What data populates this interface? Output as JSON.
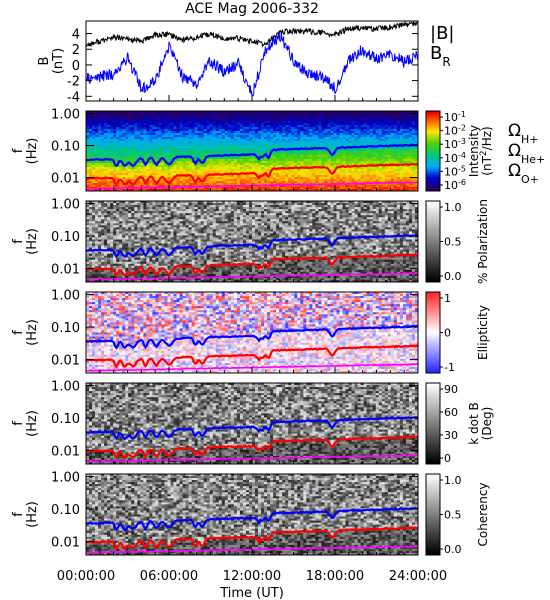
{
  "title": "ACE Mag 2006-332",
  "x_axis": {
    "label": "Time (UT)",
    "ticks": [
      "00:00:00",
      "06:00:00",
      "12:00:00",
      "18:00:00",
      "24:00:00"
    ]
  },
  "colors": {
    "h_plus": "#0000ff",
    "he_plus": "#ff0000",
    "o_plus": "#ff00ff",
    "b_total": "#000000",
    "b_r": "#0000ff"
  },
  "chart_data": [
    {
      "type": "line",
      "ylabel": "B\n(nT)",
      "yticks": [
        "4",
        "2",
        "0",
        "-2",
        "-4"
      ],
      "ylim": [
        -4.6,
        5.6
      ],
      "x_range_hours": [
        0,
        24
      ],
      "legend": [
        "|B|",
        "B_R"
      ],
      "series": [
        {
          "name": "|B|",
          "color": "#000000",
          "x": [
            0,
            1,
            2,
            3,
            4,
            5,
            6,
            7,
            8,
            9,
            10,
            11,
            12,
            13,
            14,
            15,
            16,
            17,
            18,
            19,
            20,
            21,
            22,
            23,
            24
          ],
          "values": [
            2.5,
            3.0,
            3.5,
            3.3,
            3.0,
            3.8,
            3.9,
            3.2,
            3.5,
            3.9,
            3.3,
            3.4,
            3.0,
            2.6,
            4.2,
            4.3,
            4.3,
            4.1,
            3.8,
            4.6,
            4.7,
            4.6,
            4.8,
            5.1,
            5.3
          ]
        },
        {
          "name": "B_R",
          "color": "#0000ff",
          "x": [
            0,
            1,
            2,
            3,
            4,
            5,
            6,
            7,
            8,
            9,
            10,
            11,
            12,
            13,
            14,
            15,
            16,
            17,
            18,
            19,
            20,
            21,
            22,
            23,
            24
          ],
          "values": [
            -1.8,
            -1.5,
            -1.2,
            1.0,
            -3.0,
            -2.0,
            2.5,
            -1.5,
            -2.3,
            0.5,
            -1.0,
            0.2,
            -3.8,
            1.8,
            3.8,
            0.5,
            -1.2,
            -1.5,
            -3.0,
            0.5,
            2.0,
            0.8,
            1.5,
            0.3,
            1.2
          ]
        }
      ]
    },
    {
      "type": "heatmap",
      "ylabel": "f\n(Hz)",
      "yticks": [
        "1.00",
        "0.10",
        "0.01"
      ],
      "colorbar_label": "Intensity\n(nT^2/Hz)",
      "colorbar_ticks": [
        "10^-1",
        "10^-2",
        "10^-3",
        "10^-4",
        "10^-5",
        "10^-6"
      ],
      "colorbar": "rainbow",
      "legend": [
        "Ω_H+",
        "Ω_He+",
        "Ω_O+"
      ]
    },
    {
      "type": "heatmap",
      "ylabel": "f\n(Hz)",
      "yticks": [
        "1.00",
        "0.10",
        "0.01"
      ],
      "colorbar_label": "% Polarization",
      "colorbar_ticks": [
        "1.0",
        "0.5",
        "0.0"
      ],
      "colorbar": "grayscale"
    },
    {
      "type": "heatmap",
      "ylabel": "f\n(Hz)",
      "yticks": [
        "1.00",
        "0.10",
        "0.01"
      ],
      "colorbar_label": "Ellipticity",
      "colorbar_ticks": [
        "1",
        "0",
        "-1"
      ],
      "colorbar": "blue-white-red"
    },
    {
      "type": "heatmap",
      "ylabel": "f\n(Hz)",
      "yticks": [
        "1.00",
        "0.10",
        "0.01"
      ],
      "colorbar_label": "k dot B\n(Deg)",
      "colorbar_ticks": [
        "90",
        "60",
        "30",
        "0"
      ],
      "colorbar": "grayscale"
    },
    {
      "type": "heatmap",
      "ylabel": "f\n(Hz)",
      "yticks": [
        "1.00",
        "0.10",
        "0.01"
      ],
      "colorbar_label": "Coherency",
      "colorbar_ticks": [
        "1.0",
        "0.5",
        "0.0"
      ],
      "colorbar": "grayscale"
    }
  ]
}
